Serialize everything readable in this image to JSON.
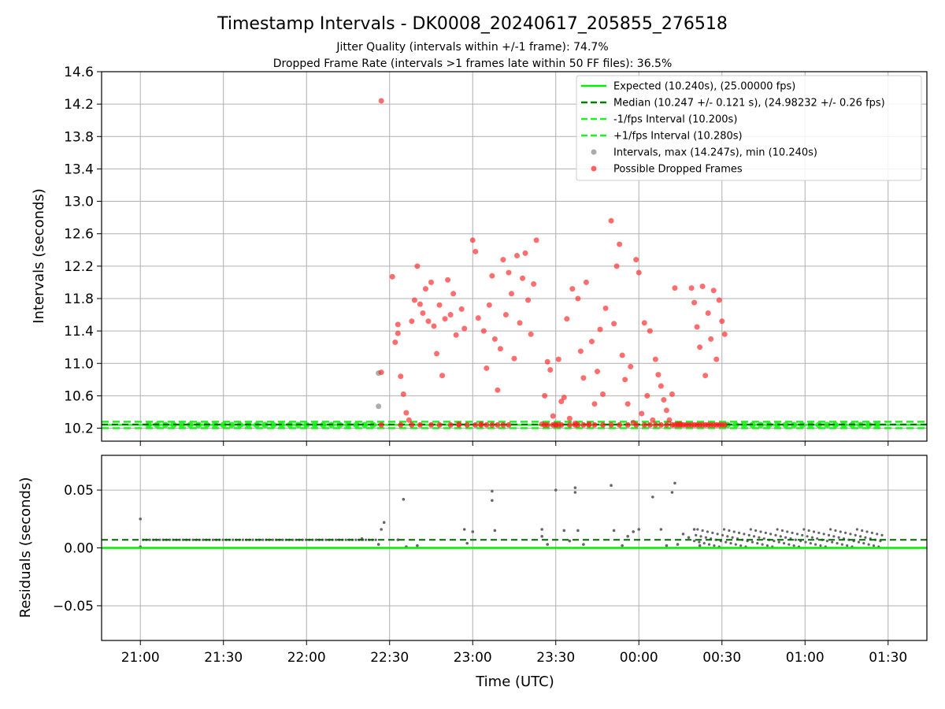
{
  "figure": {
    "title": "Timestamp Intervals - DK0008_20240617_205855_276518",
    "subtitle_1": "Jitter Quality (intervals within +/-1 frame): 74.7%",
    "subtitle_2": "Dropped Frame Rate (intervals >1 frames late within 50 FF files): 36.5%"
  },
  "chart_data": [
    {
      "type": "scatter",
      "panel": "top",
      "ylabel": "Intervals (seconds)",
      "xlabel": "",
      "x_ticks": [
        "21:00",
        "21:30",
        "22:00",
        "22:30",
        "23:00",
        "23:30",
        "00:00",
        "00:30",
        "01:00",
        "01:30"
      ],
      "y_ticks": [
        "10.2",
        "10.6",
        "11.0",
        "11.4",
        "11.8",
        "12.2",
        "12.6",
        "13.0",
        "13.4",
        "13.8",
        "14.2",
        "14.6"
      ],
      "ylim": [
        10.04,
        14.6
      ],
      "xlim_minutes": [
        -14,
        284
      ],
      "grid": true,
      "legend_position": "top-right",
      "legend": [
        {
          "label": "Expected (10.240s), (25.00000 fps)",
          "kind": "solid-line",
          "color": "#00ee00"
        },
        {
          "label": "Median (10.247 +/- 0.121 s), (24.98232 +/- 0.26 fps)",
          "kind": "dashed-line",
          "color": "#008000"
        },
        {
          "label": "-1/fps Interval (10.200s)",
          "kind": "dashed-line",
          "color": "#22ee22"
        },
        {
          "label": "+1/fps Interval (10.280s)",
          "kind": "dashed-line",
          "color": "#22ee22"
        },
        {
          "label": "Intervals, max (14.247s), min (10.240s)",
          "kind": "dot",
          "color": "#888888"
        },
        {
          "label": "Possible Dropped Frames",
          "kind": "dot",
          "color": "#ff2020"
        }
      ],
      "reference_lines": {
        "expected": 10.24,
        "median": 10.247,
        "minus_1fps": 10.2,
        "plus_1fps": 10.28
      },
      "x_start_minute": 0,
      "x_end_minute": 269,
      "baseline_green_markers_minutes": [
        0,
        269
      ],
      "dropped_frames": [
        {
          "t": 87,
          "v": 14.24
        },
        {
          "t": 86,
          "v": 10.88
        },
        {
          "t": 87,
          "v": 10.89
        },
        {
          "t": 86,
          "v": 10.47
        },
        {
          "t": 91,
          "v": 12.07
        },
        {
          "t": 92,
          "v": 11.26
        },
        {
          "t": 93,
          "v": 11.37
        },
        {
          "t": 93,
          "v": 11.48
        },
        {
          "t": 94,
          "v": 10.84
        },
        {
          "t": 95,
          "v": 10.62
        },
        {
          "t": 96,
          "v": 10.39
        },
        {
          "t": 97,
          "v": 10.3
        },
        {
          "t": 98,
          "v": 11.52
        },
        {
          "t": 99,
          "v": 11.78
        },
        {
          "t": 100,
          "v": 12.2
        },
        {
          "t": 101,
          "v": 11.73
        },
        {
          "t": 102,
          "v": 11.62
        },
        {
          "t": 103,
          "v": 11.92
        },
        {
          "t": 104,
          "v": 11.52
        },
        {
          "t": 105,
          "v": 12.0
        },
        {
          "t": 106,
          "v": 11.46
        },
        {
          "t": 107,
          "v": 11.12
        },
        {
          "t": 108,
          "v": 11.72
        },
        {
          "t": 109,
          "v": 10.85
        },
        {
          "t": 110,
          "v": 11.55
        },
        {
          "t": 111,
          "v": 12.03
        },
        {
          "t": 112,
          "v": 11.6
        },
        {
          "t": 113,
          "v": 11.86
        },
        {
          "t": 114,
          "v": 11.35
        },
        {
          "t": 115,
          "v": 10.25
        },
        {
          "t": 116,
          "v": 11.67
        },
        {
          "t": 117,
          "v": 11.43
        },
        {
          "t": 120,
          "v": 12.52
        },
        {
          "t": 121,
          "v": 12.38
        },
        {
          "t": 122,
          "v": 11.56
        },
        {
          "t": 123,
          "v": 10.25
        },
        {
          "t": 124,
          "v": 11.4
        },
        {
          "t": 125,
          "v": 10.94
        },
        {
          "t": 126,
          "v": 11.72
        },
        {
          "t": 127,
          "v": 12.08
        },
        {
          "t": 128,
          "v": 11.3
        },
        {
          "t": 129,
          "v": 10.67
        },
        {
          "t": 130,
          "v": 11.18
        },
        {
          "t": 131,
          "v": 12.28
        },
        {
          "t": 132,
          "v": 11.6
        },
        {
          "t": 133,
          "v": 12.12
        },
        {
          "t": 134,
          "v": 11.86
        },
        {
          "t": 135,
          "v": 11.06
        },
        {
          "t": 136,
          "v": 12.33
        },
        {
          "t": 137,
          "v": 11.5
        },
        {
          "t": 138,
          "v": 12.05
        },
        {
          "t": 139,
          "v": 12.36
        },
        {
          "t": 140,
          "v": 11.78
        },
        {
          "t": 141,
          "v": 11.36
        },
        {
          "t": 142,
          "v": 11.98
        },
        {
          "t": 143,
          "v": 12.52
        },
        {
          "t": 145,
          "v": 10.25
        },
        {
          "t": 146,
          "v": 10.6
        },
        {
          "t": 147,
          "v": 11.02
        },
        {
          "t": 148,
          "v": 10.92
        },
        {
          "t": 149,
          "v": 10.35
        },
        {
          "t": 150,
          "v": 10.24
        },
        {
          "t": 151,
          "v": 11.05
        },
        {
          "t": 152,
          "v": 10.53
        },
        {
          "t": 153,
          "v": 10.58
        },
        {
          "t": 154,
          "v": 11.55
        },
        {
          "t": 155,
          "v": 10.32
        },
        {
          "t": 156,
          "v": 11.92
        },
        {
          "t": 157,
          "v": 10.26
        },
        {
          "t": 158,
          "v": 11.8
        },
        {
          "t": 159,
          "v": 11.15
        },
        {
          "t": 160,
          "v": 10.82
        },
        {
          "t": 161,
          "v": 12.0
        },
        {
          "t": 162,
          "v": 10.25
        },
        {
          "t": 163,
          "v": 11.27
        },
        {
          "t": 164,
          "v": 10.5
        },
        {
          "t": 165,
          "v": 10.9
        },
        {
          "t": 166,
          "v": 11.42
        },
        {
          "t": 167,
          "v": 10.62
        },
        {
          "t": 168,
          "v": 11.68
        },
        {
          "t": 170,
          "v": 12.76
        },
        {
          "t": 171,
          "v": 11.49
        },
        {
          "t": 172,
          "v": 12.2
        },
        {
          "t": 173,
          "v": 12.47
        },
        {
          "t": 174,
          "v": 11.1
        },
        {
          "t": 175,
          "v": 10.8
        },
        {
          "t": 176,
          "v": 10.5
        },
        {
          "t": 177,
          "v": 10.96
        },
        {
          "t": 178,
          "v": 10.27
        },
        {
          "t": 179,
          "v": 12.28
        },
        {
          "t": 180,
          "v": 12.12
        },
        {
          "t": 181,
          "v": 10.38
        },
        {
          "t": 182,
          "v": 11.5
        },
        {
          "t": 183,
          "v": 10.6
        },
        {
          "t": 184,
          "v": 11.4
        },
        {
          "t": 185,
          "v": 10.3
        },
        {
          "t": 186,
          "v": 11.05
        },
        {
          "t": 187,
          "v": 10.86
        },
        {
          "t": 188,
          "v": 10.72
        },
        {
          "t": 189,
          "v": 10.55
        },
        {
          "t": 190,
          "v": 10.42
        },
        {
          "t": 191,
          "v": 10.3
        },
        {
          "t": 192,
          "v": 10.62
        },
        {
          "t": 193,
          "v": 11.93
        },
        {
          "t": 194,
          "v": 10.25
        },
        {
          "t": 195,
          "v": 10.25
        },
        {
          "t": 199,
          "v": 11.93
        },
        {
          "t": 200,
          "v": 11.75
        },
        {
          "t": 201,
          "v": 11.45
        },
        {
          "t": 202,
          "v": 11.2
        },
        {
          "t": 203,
          "v": 11.95
        },
        {
          "t": 204,
          "v": 10.85
        },
        {
          "t": 205,
          "v": 11.62
        },
        {
          "t": 206,
          "v": 11.3
        },
        {
          "t": 207,
          "v": 11.9
        },
        {
          "t": 208,
          "v": 11.05
        },
        {
          "t": 209,
          "v": 11.78
        },
        {
          "t": 210,
          "v": 11.52
        },
        {
          "t": 211,
          "v": 11.36
        }
      ],
      "dropped_baseline_minutes": [
        87,
        94,
        98,
        101,
        105,
        108,
        112,
        115,
        118,
        121,
        123,
        125,
        127,
        129,
        131,
        133,
        146,
        147,
        149,
        150,
        151,
        152,
        155,
        157,
        158,
        160,
        162,
        164,
        167,
        170,
        173,
        176,
        179,
        182,
        184,
        186,
        188,
        190,
        192,
        193,
        194,
        195,
        196,
        197,
        198,
        199,
        200,
        201,
        202,
        203,
        204,
        205,
        206,
        207,
        208,
        209,
        210,
        211
      ],
      "normal_intervals_minutes": [
        3,
        6,
        9,
        12,
        15,
        18,
        21,
        24,
        27,
        30,
        33,
        36,
        39,
        42,
        45,
        48,
        51,
        54,
        57,
        60,
        63,
        66,
        69,
        72,
        75,
        78,
        81,
        84,
        212,
        215,
        218,
        221,
        224,
        227,
        230,
        233,
        236,
        239,
        242,
        245,
        248,
        251,
        254,
        257,
        260,
        263,
        266
      ]
    },
    {
      "type": "scatter",
      "panel": "bottom",
      "ylabel": "Residuals (seconds)",
      "xlabel": "Time (UTC)",
      "x_ticks": [
        "21:00",
        "21:30",
        "22:00",
        "22:30",
        "23:00",
        "23:30",
        "00:00",
        "00:30",
        "01:00",
        "01:30"
      ],
      "y_ticks": [
        "0.05",
        "0.00",
        "−0.05"
      ],
      "ylim": [
        -0.08,
        0.08
      ],
      "grid": true,
      "reference_lines": {
        "expected": 0.0,
        "median": 0.007
      },
      "residual_points": [
        {
          "t": 0,
          "v": 0.025
        },
        {
          "t": 0,
          "v": 0.001
        },
        {
          "t": 80,
          "v": 0.008
        },
        {
          "t": 86,
          "v": 0.003
        },
        {
          "t": 87,
          "v": 0.016
        },
        {
          "t": 88,
          "v": 0.022
        },
        {
          "t": 93,
          "v": 0.007
        },
        {
          "t": 95,
          "v": 0.042
        },
        {
          "t": 96,
          "v": 0.001
        },
        {
          "t": 100,
          "v": 0.002
        },
        {
          "t": 117,
          "v": 0.016
        },
        {
          "t": 118,
          "v": 0.004
        },
        {
          "t": 120,
          "v": 0.014
        },
        {
          "t": 127,
          "v": 0.049
        },
        {
          "t": 127,
          "v": 0.041
        },
        {
          "t": 128,
          "v": 0.015
        },
        {
          "t": 145,
          "v": 0.016
        },
        {
          "t": 145,
          "v": 0.01
        },
        {
          "t": 147,
          "v": 0.003
        },
        {
          "t": 150,
          "v": 0.05
        },
        {
          "t": 153,
          "v": 0.015
        },
        {
          "t": 155,
          "v": 0.006
        },
        {
          "t": 157,
          "v": 0.052
        },
        {
          "t": 157,
          "v": 0.048
        },
        {
          "t": 158,
          "v": 0.015
        },
        {
          "t": 160,
          "v": 0.003
        },
        {
          "t": 170,
          "v": 0.054
        },
        {
          "t": 171,
          "v": 0.015
        },
        {
          "t": 174,
          "v": 0.002
        },
        {
          "t": 176,
          "v": 0.01
        },
        {
          "t": 178,
          "v": 0.014
        },
        {
          "t": 180,
          "v": 0.016
        },
        {
          "t": 185,
          "v": 0.044
        },
        {
          "t": 188,
          "v": 0.016
        },
        {
          "t": 190,
          "v": 0.002
        },
        {
          "t": 192,
          "v": 0.048
        },
        {
          "t": 193,
          "v": 0.056
        },
        {
          "t": 194,
          "v": 0.003
        },
        {
          "t": 196,
          "v": 0.012
        },
        {
          "t": 198,
          "v": 0.009
        },
        {
          "t": 200,
          "v": 0.016
        },
        {
          "t": 202,
          "v": 0.002
        }
      ],
      "dense_residual_band": {
        "start_minute": 200,
        "end_minute": 268,
        "low": 0.001,
        "high": 0.016
      },
      "flat_residual_band": {
        "start_minute": 1,
        "end_minute": 86,
        "value": 0.007
      }
    }
  ]
}
